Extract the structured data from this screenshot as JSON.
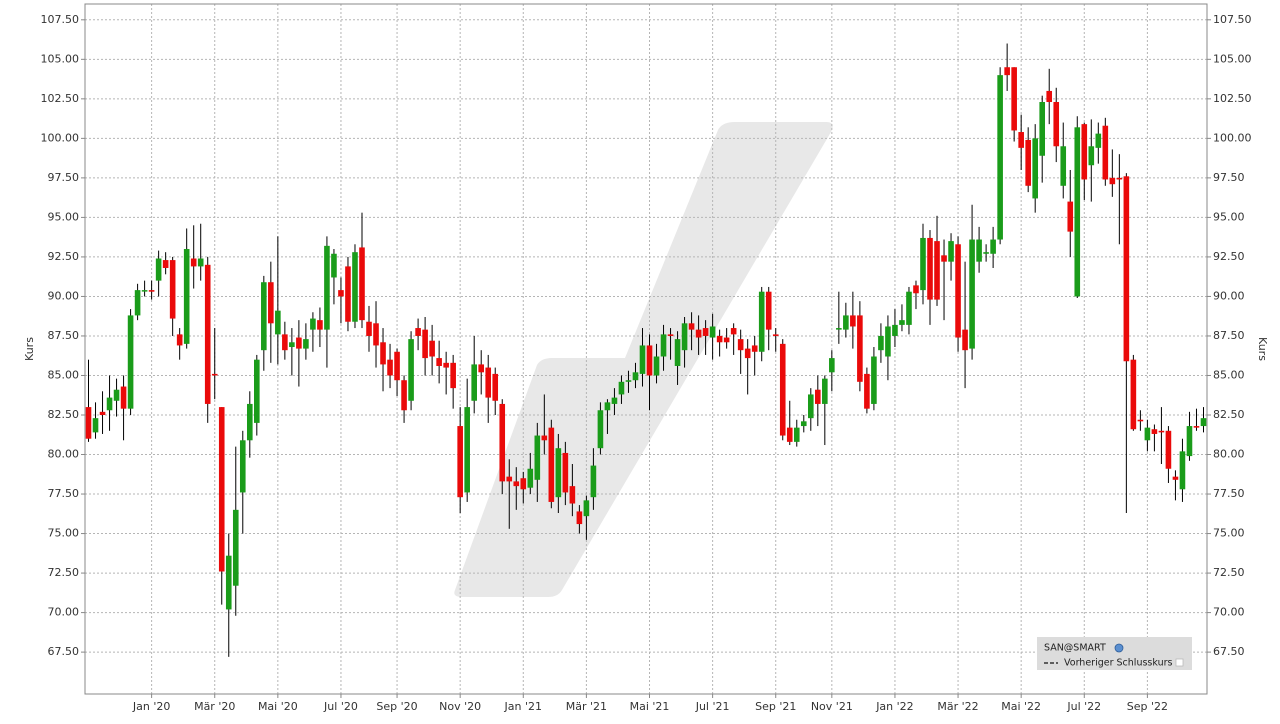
{
  "chart_data": {
    "type": "candlestick",
    "y_label": "Kurs",
    "legend": [
      "SAN@SMART",
      "Vorheriger Schlusskurs"
    ],
    "colors": {
      "up": "#1a9c1a",
      "down": "#ea0a0a",
      "wick": "#000000"
    },
    "grid": true,
    "ylim": [
      64.85,
      108.5
    ],
    "yticks": [
      {
        "value": 67.5,
        "label": "67.50"
      },
      {
        "value": 70,
        "label": "70.00"
      },
      {
        "value": 72.5,
        "label": "72.50"
      },
      {
        "value": 75,
        "label": "75.00"
      },
      {
        "value": 77.5,
        "label": "77.50"
      },
      {
        "value": 80,
        "label": "80.00"
      },
      {
        "value": 82.5,
        "label": "82.50"
      },
      {
        "value": 85,
        "label": "85.00"
      },
      {
        "value": 87.5,
        "label": "87.50"
      },
      {
        "value": 90,
        "label": "90.00"
      },
      {
        "value": 92.5,
        "label": "92.50"
      },
      {
        "value": 95,
        "label": "95.00"
      },
      {
        "value": 97.5,
        "label": "97.50"
      },
      {
        "value": 100,
        "label": "100.00"
      },
      {
        "value": 102.5,
        "label": "102.50"
      },
      {
        "value": 105,
        "label": "105.00"
      },
      {
        "value": 107.5,
        "label": "107.50"
      }
    ],
    "categories": [
      null,
      null,
      null,
      null,
      null,
      null,
      null,
      null,
      null,
      "Jan '20",
      null,
      null,
      null,
      null,
      null,
      null,
      null,
      null,
      "Mär '20",
      null,
      null,
      null,
      null,
      null,
      null,
      null,
      null,
      "Mai '20",
      null,
      null,
      null,
      null,
      null,
      null,
      null,
      null,
      "Jul '20",
      null,
      null,
      null,
      null,
      null,
      null,
      null,
      "Sep '20",
      null,
      null,
      null,
      null,
      null,
      null,
      null,
      null,
      "Nov '20",
      null,
      null,
      null,
      null,
      null,
      null,
      null,
      null,
      "Jan '21",
      null,
      null,
      null,
      null,
      null,
      null,
      null,
      null,
      "Mär '21",
      null,
      null,
      null,
      null,
      null,
      null,
      null,
      null,
      "Mai '21",
      null,
      null,
      null,
      null,
      null,
      null,
      null,
      null,
      "Jul '21",
      null,
      null,
      null,
      null,
      null,
      null,
      null,
      null,
      "Sep '21",
      null,
      null,
      null,
      null,
      null,
      null,
      null,
      "Nov '21",
      null,
      null,
      null,
      null,
      null,
      null,
      null,
      null,
      "Jan '22",
      null,
      null,
      null,
      null,
      null,
      null,
      null,
      null,
      "Mär '22",
      null,
      null,
      null,
      null,
      null,
      null,
      null,
      null,
      "Mai '22",
      null,
      null,
      null,
      null,
      null,
      null,
      null,
      null,
      "Jul '22",
      null,
      null,
      null,
      null,
      null,
      null,
      null,
      null,
      "Sep '22",
      null,
      null,
      null,
      null,
      null,
      null,
      null,
      null
    ],
    "open": [
      83,
      81.4,
      82.7,
      82.8,
      83.4,
      84.3,
      82.9,
      88.8,
      90.4,
      90.4,
      91,
      92.3,
      92.3,
      87.6,
      87,
      92.4,
      91.9,
      92,
      85.1,
      83,
      70.2,
      71.7,
      77.6,
      80.9,
      82,
      86.6,
      90.9,
      87.6,
      87.6,
      86.8,
      87.4,
      86.7,
      87.9,
      88.5,
      87.9,
      91.2,
      90.4,
      91.9,
      88.4,
      93.1,
      88.4,
      88.3,
      87.1,
      86,
      86.5,
      84.7,
      83.4,
      88,
      87.9,
      87.2,
      86.1,
      85.8,
      85.8,
      81.8,
      77.6,
      83.4,
      85.7,
      85.5,
      85.1,
      83.2,
      78.6,
      78.3,
      78.5,
      77.9,
      78.4,
      81.2,
      81.7,
      77.3,
      80.1,
      78,
      76.4,
      76.1,
      77.3,
      80.4,
      82.8,
      83.2,
      83.8,
      84.6,
      84.7,
      85.1,
      86.9,
      85,
      86.2,
      87.6,
      85.6,
      86.6,
      88.3,
      87.9,
      88,
      87.4,
      87.5,
      87.4,
      88,
      87.3,
      86.7,
      86.9,
      86.5,
      90.3,
      87.6,
      87,
      81.7,
      80.8,
      81.8,
      82.3,
      84.1,
      83.2,
      85.2,
      87.9,
      87.9,
      88.8,
      88.8,
      85.1,
      83.2,
      86.6,
      86.2,
      87.5,
      88.2,
      88.2,
      90.7,
      90.4,
      93.7,
      93.5,
      92.6,
      92.2,
      93.3,
      87.9,
      86.7,
      92.2,
      92.7,
      92.7,
      93.6,
      104.5,
      104.5,
      100.4,
      99.9,
      96.2,
      98.9,
      103,
      102.3,
      97,
      96,
      90,
      100.9,
      98.3,
      99.4,
      100.8,
      97.5,
      97.5,
      97.6,
      86,
      82.2,
      80.9,
      81.6,
      81.5,
      81.5,
      78.6,
      77.8,
      79.9,
      81.8,
      81.8
    ],
    "high": [
      86,
      83.3,
      84,
      85,
      84.8,
      85,
      89.2,
      90.8,
      91,
      91,
      92.9,
      92.8,
      92.5,
      88,
      94.3,
      94.5,
      94.6,
      92.5,
      88,
      83,
      75,
      80.5,
      81.5,
      84,
      86.3,
      91.3,
      92.2,
      93.8,
      88.4,
      88,
      88.5,
      88.3,
      89,
      89.3,
      93.8,
      93,
      91.2,
      92.5,
      93.3,
      95.3,
      89.4,
      89.7,
      88,
      87,
      86.7,
      85,
      87.8,
      88.6,
      88.7,
      88.2,
      87.2,
      86.5,
      86.3,
      83,
      84.8,
      87.5,
      86.6,
      86.3,
      85.5,
      83.5,
      79.7,
      79.2,
      78.9,
      80.1,
      82,
      83.8,
      82.2,
      81.3,
      80.8,
      79.4,
      76.8,
      77.4,
      80.4,
      83.3,
      83.5,
      84.2,
      85,
      85.3,
      85.8,
      88,
      87.6,
      87,
      88.2,
      88,
      87.8,
      88.7,
      89,
      88.8,
      88.5,
      88.9,
      87.9,
      88,
      88.3,
      87.9,
      87.3,
      87.5,
      90.6,
      90.6,
      88,
      87.3,
      83.4,
      82.2,
      82.5,
      84.2,
      85,
      85,
      86.6,
      90.3,
      89.6,
      90.3,
      89.7,
      85.5,
      86.8,
      88.3,
      88.8,
      89.2,
      89.5,
      90.6,
      91,
      94.6,
      94.2,
      95.1,
      93.6,
      94,
      93.8,
      92.2,
      95.8,
      94.4,
      93.3,
      94.4,
      104.5,
      106,
      104.5,
      101.5,
      100.7,
      100.9,
      102.7,
      104.4,
      103.2,
      101,
      98,
      101.4,
      101,
      101.2,
      101,
      101.3,
      99.3,
      99,
      97.8,
      86.3,
      82.8,
      82.2,
      81.9,
      83,
      81.8,
      79,
      81,
      82.7,
      82.9,
      83
    ],
    "low": [
      80.8,
      81,
      81.3,
      81.5,
      82.4,
      80.9,
      82.5,
      88.5,
      90,
      89.8,
      90,
      91.4,
      87.5,
      86,
      86.7,
      90.5,
      91,
      82,
      83.5,
      70.5,
      67.2,
      69.8,
      75,
      79.8,
      81.2,
      85.3,
      85.8,
      85.7,
      86,
      85,
      84.3,
      86,
      86.5,
      86.8,
      85.5,
      89.5,
      88.3,
      87.8,
      88,
      88,
      86.5,
      85.5,
      84,
      84.2,
      83.7,
      82,
      82.8,
      86.6,
      85,
      85,
      84.5,
      83.8,
      82.9,
      76.3,
      77,
      82.6,
      83.8,
      82,
      82.5,
      77.5,
      75.3,
      76.5,
      76.9,
      77.5,
      77,
      80,
      76.6,
      76.3,
      76.8,
      76.1,
      75,
      74.6,
      76.5,
      80,
      81.3,
      82.5,
      83.2,
      83.9,
      84.2,
      84.3,
      82.8,
      84.5,
      85.3,
      86,
      84.4,
      85.5,
      86.6,
      86.3,
      86.3,
      86,
      86.2,
      86.7,
      86.3,
      85.1,
      83.8,
      85,
      85.9,
      86.6,
      86.5,
      80.9,
      80.6,
      80.5,
      81.4,
      81.5,
      81.8,
      80.6,
      84,
      87,
      87.4,
      86.7,
      84,
      82.6,
      82.8,
      85.8,
      84.7,
      86.8,
      87.8,
      87.6,
      89.2,
      89.5,
      88.2,
      89.4,
      88.5,
      91,
      86.5,
      84.2,
      86,
      91.5,
      92.2,
      91.8,
      93.3,
      103,
      99.8,
      98,
      96.6,
      95.3,
      97.2,
      100.9,
      98.5,
      96.2,
      92.5,
      89.9,
      96.1,
      96,
      98.4,
      97,
      96.3,
      93.3,
      76.3,
      81.5,
      81.5,
      80.2,
      80.2,
      79.4,
      78.2,
      77.1,
      77,
      79.6,
      81.5,
      81.4
    ],
    "close": [
      81,
      82.3,
      82.5,
      83.6,
      84.1,
      82.9,
      88.8,
      90.4,
      90.4,
      90.3,
      92.4,
      91.8,
      88.6,
      86.9,
      93,
      91.9,
      92.4,
      83.2,
      85,
      72.6,
      73.6,
      76.5,
      80.9,
      83.2,
      86,
      90.9,
      88.3,
      89.1,
      86.6,
      87.1,
      86.7,
      87.3,
      88.6,
      87.9,
      93.2,
      92.7,
      90,
      88.4,
      92.8,
      88.5,
      87.5,
      86.9,
      85.7,
      85,
      84.7,
      82.8,
      87.3,
      87.5,
      86.1,
      86.2,
      85.6,
      85.5,
      84.2,
      77.3,
      83,
      85.7,
      85.2,
      83.6,
      83.4,
      78.3,
      78.3,
      78,
      77.8,
      79.1,
      81.2,
      80.9,
      77,
      80.4,
      77.6,
      76.9,
      75.6,
      77.1,
      79.3,
      82.8,
      83.3,
      83.6,
      84.6,
      84.7,
      85.2,
      86.9,
      85,
      86.2,
      87.6,
      87.5,
      87.3,
      88.3,
      87.9,
      87.4,
      87.5,
      88.1,
      87.1,
      87.1,
      87.6,
      86.6,
      86.1,
      86.5,
      90.3,
      87.9,
      87.5,
      81.2,
      80.8,
      81.7,
      82.1,
      83.8,
      83.2,
      84.8,
      86.1,
      88,
      88.8,
      88.1,
      84.6,
      82.9,
      86.2,
      87.5,
      88.1,
      88.2,
      88.5,
      90.3,
      90.2,
      93.7,
      89.8,
      89.8,
      92.2,
      93.5,
      87.4,
      86.6,
      93.6,
      93.6,
      92.8,
      93.6,
      104,
      104,
      100.5,
      99.4,
      97,
      100,
      102.3,
      102.3,
      99.5,
      99.5,
      94.1,
      100.7,
      97.4,
      99.5,
      100.3,
      97.4,
      97.1,
      97.4,
      85.9,
      81.6,
      82.1,
      81.7,
      81.3,
      81.4,
      79.1,
      78.4,
      80.2,
      81.8,
      81.7,
      82.3
    ]
  }
}
